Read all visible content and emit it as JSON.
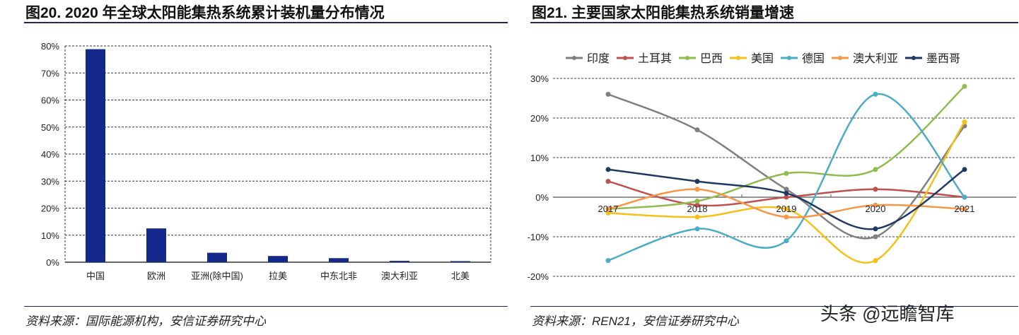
{
  "left": {
    "title": "图20. 2020 年全球太阳能集热系统累计装机量分布情况",
    "source": "资料来源：国际能源机构，安信证券研究中心"
  },
  "right": {
    "title": "图21. 主要国家太阳能集热系统销量增速",
    "source": "资料来源：REN21，安信证券研究中心"
  },
  "watermark": "头条 @远瞻智库",
  "chart_data": [
    {
      "type": "bar",
      "categories": [
        "中国",
        "欧洲",
        "亚洲(除中国)",
        "拉美",
        "中东北非",
        "澳大利亚",
        "北美"
      ],
      "values": [
        78.8,
        12.5,
        3.5,
        2.3,
        1.5,
        0.5,
        0.4
      ],
      "unit": "%",
      "ylim": [
        0,
        80
      ],
      "yticks": [
        "0%",
        "10%",
        "20%",
        "30%",
        "40%",
        "50%",
        "60%",
        "70%",
        "80%"
      ],
      "grid": true,
      "color": "#15288c"
    },
    {
      "type": "line",
      "categories": [
        "2017",
        "2018",
        "2019",
        "2020",
        "2021"
      ],
      "ylim": [
        -20,
        30
      ],
      "yticks": [
        "-20%",
        "-10%",
        "0%",
        "10%",
        "20%",
        "30%"
      ],
      "grid": true,
      "legend": "top",
      "series": [
        {
          "name": "印度",
          "color": "#7f7f7f",
          "values": [
            26,
            17,
            2,
            -10,
            18
          ]
        },
        {
          "name": "土耳其",
          "color": "#c0504d",
          "values": [
            4,
            -2,
            0,
            2,
            0
          ]
        },
        {
          "name": "巴西",
          "color": "#8fbc4f",
          "values": [
            -3,
            -1,
            6,
            7,
            28
          ]
        },
        {
          "name": "美国",
          "color": "#f5c018",
          "values": [
            -4,
            -5,
            -3,
            -16,
            19
          ]
        },
        {
          "name": "德国",
          "color": "#4bacc6",
          "values": [
            -16,
            -8,
            -11,
            26,
            0
          ]
        },
        {
          "name": "澳大利亚",
          "color": "#f79646",
          "values": [
            -3,
            2,
            -5,
            -2,
            -3
          ]
        },
        {
          "name": "墨西哥",
          "color": "#1f3864",
          "values": [
            7,
            4,
            1,
            -8,
            7
          ]
        }
      ]
    }
  ]
}
